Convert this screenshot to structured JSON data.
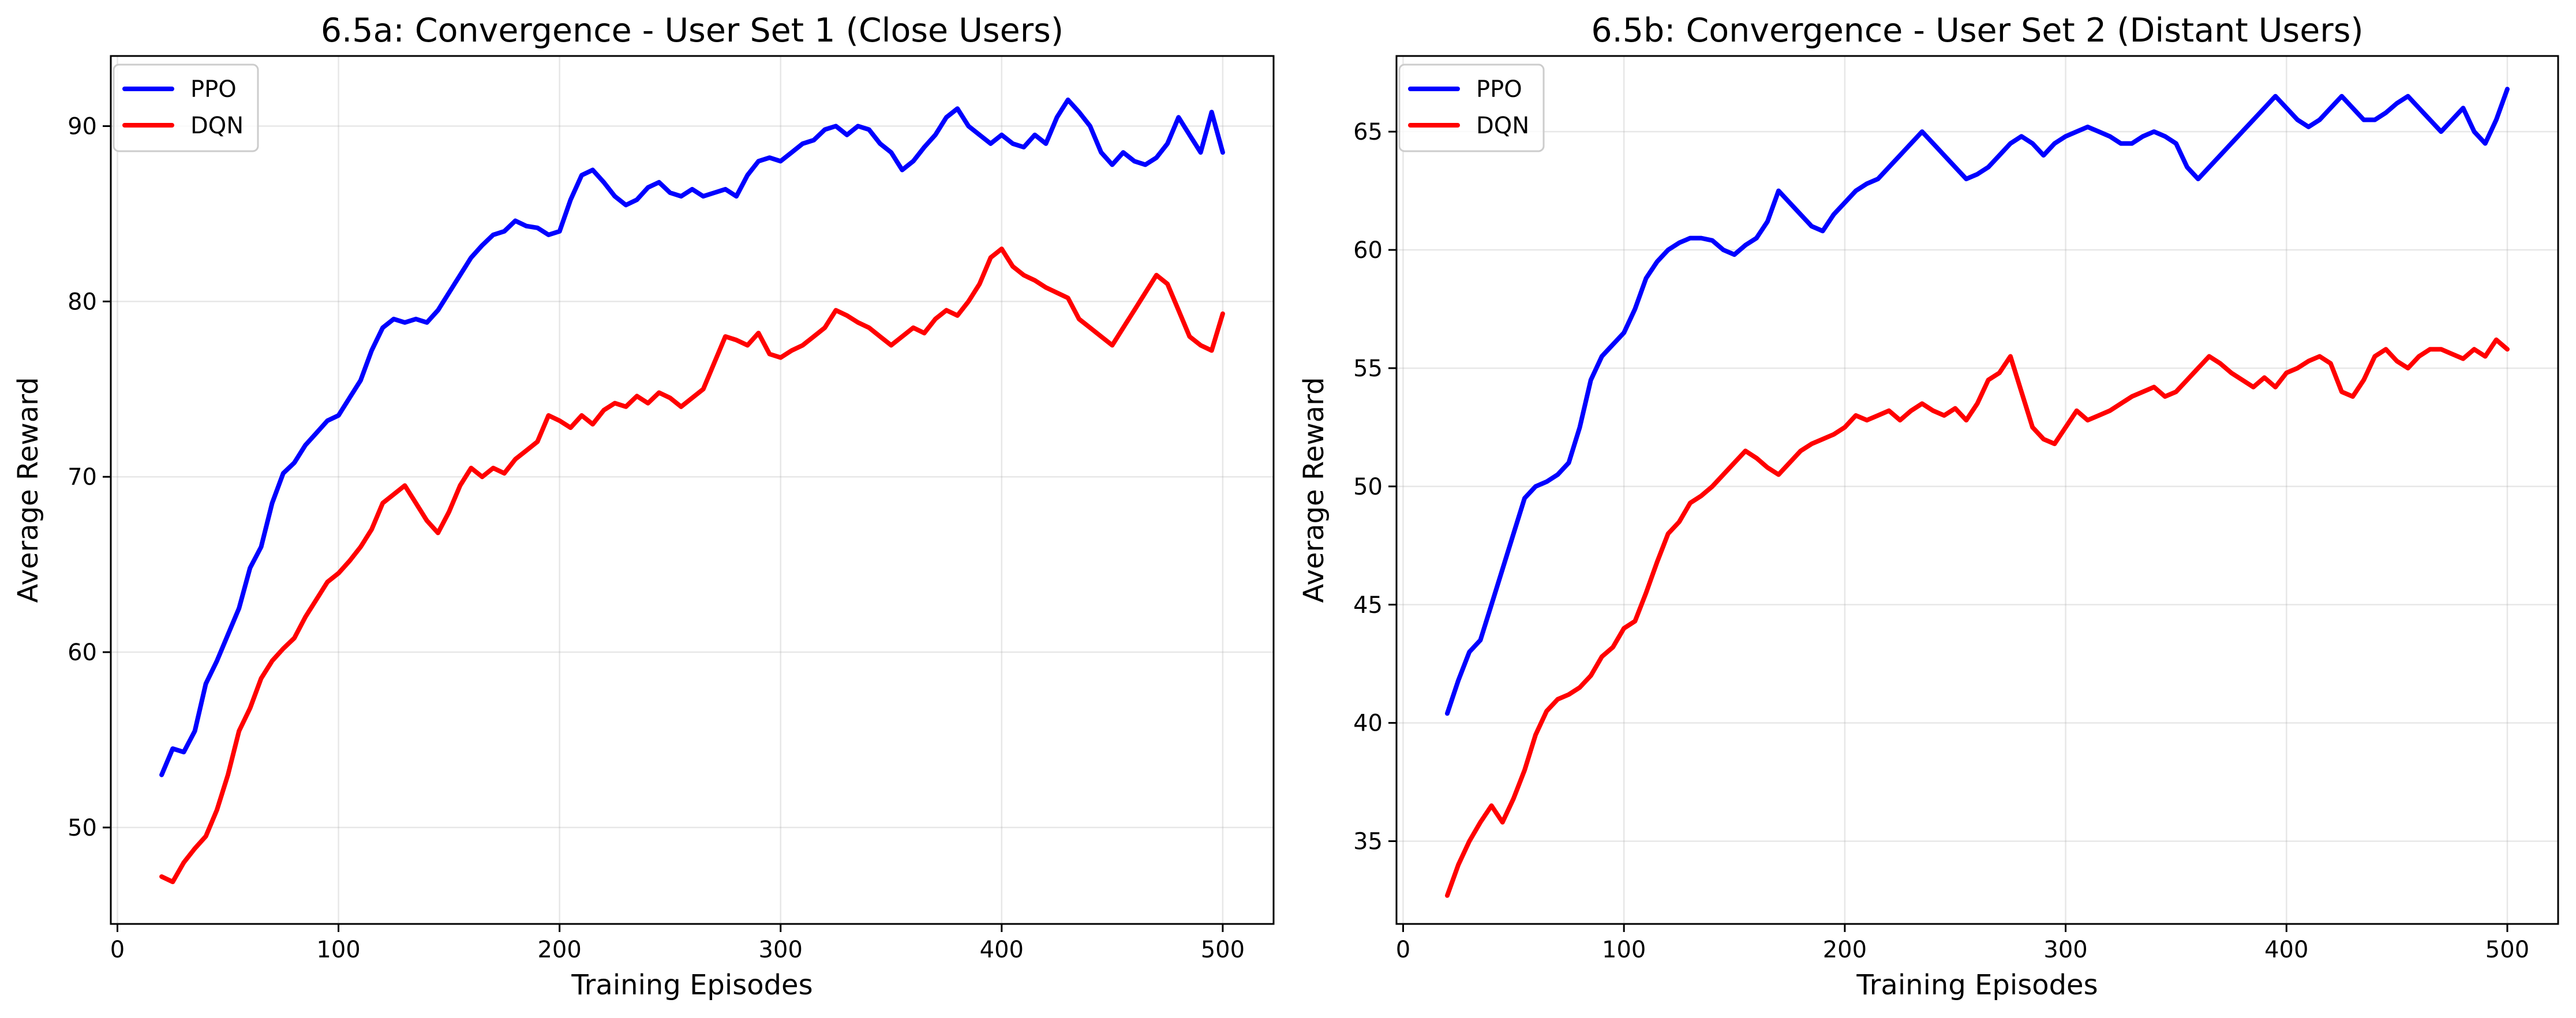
{
  "chart_data": [
    {
      "type": "line",
      "title": "6.5a: Convergence - User Set 1 (Close Users)",
      "xlabel": "Training Episodes",
      "ylabel": "Average Reward",
      "xlim": [
        -3,
        523
      ],
      "ylim": [
        44.5,
        94
      ],
      "xticks": [
        0,
        100,
        200,
        300,
        400,
        500
      ],
      "yticks": [
        50,
        60,
        70,
        80,
        90
      ],
      "grid": true,
      "legend_placement": "top-left",
      "series": [
        {
          "name": "PPO",
          "color": "#0000ff",
          "x": [
            20,
            25,
            30,
            35,
            40,
            45,
            50,
            55,
            60,
            65,
            70,
            75,
            80,
            85,
            90,
            95,
            100,
            105,
            110,
            115,
            120,
            125,
            130,
            135,
            140,
            145,
            150,
            155,
            160,
            165,
            170,
            175,
            180,
            185,
            190,
            195,
            200,
            205,
            210,
            215,
            220,
            225,
            230,
            235,
            240,
            245,
            250,
            255,
            260,
            265,
            270,
            275,
            280,
            285,
            290,
            295,
            300,
            305,
            310,
            315,
            320,
            325,
            330,
            335,
            340,
            345,
            350,
            355,
            360,
            365,
            370,
            375,
            380,
            385,
            390,
            395,
            400,
            405,
            410,
            415,
            420,
            425,
            430,
            435,
            440,
            445,
            450,
            455,
            460,
            465,
            470,
            475,
            480,
            485,
            490,
            495,
            500
          ],
          "y": [
            53.0,
            54.5,
            54.3,
            55.5,
            58.2,
            59.5,
            61.0,
            62.5,
            64.8,
            66.0,
            68.5,
            70.2,
            70.8,
            71.8,
            72.5,
            73.2,
            73.5,
            74.5,
            75.5,
            77.2,
            78.5,
            79.0,
            78.8,
            79.0,
            78.8,
            79.5,
            80.5,
            81.5,
            82.5,
            83.2,
            83.8,
            84.0,
            84.6,
            84.3,
            84.2,
            83.8,
            84.0,
            85.8,
            87.2,
            87.5,
            86.8,
            86.0,
            85.5,
            85.8,
            86.5,
            86.8,
            86.2,
            86.0,
            86.4,
            86.0,
            86.2,
            86.4,
            86.0,
            87.2,
            88.0,
            88.2,
            88.0,
            88.5,
            89.0,
            89.2,
            89.8,
            90.0,
            89.5,
            90.0,
            89.8,
            89.0,
            88.5,
            87.5,
            88.0,
            88.8,
            89.5,
            90.5,
            91.0,
            90.0,
            89.5,
            89.0,
            89.5,
            89.0,
            88.8,
            89.5,
            89.0,
            90.5,
            91.5,
            90.8,
            90.0,
            88.5,
            87.8,
            88.5,
            88.0,
            87.8,
            88.2,
            89.0,
            90.5,
            89.5,
            88.5,
            90.8,
            88.5
          ]
        },
        {
          "name": "DQN",
          "color": "#ff0000",
          "x": [
            20,
            25,
            30,
            35,
            40,
            45,
            50,
            55,
            60,
            65,
            70,
            75,
            80,
            85,
            90,
            95,
            100,
            105,
            110,
            115,
            120,
            125,
            130,
            135,
            140,
            145,
            150,
            155,
            160,
            165,
            170,
            175,
            180,
            185,
            190,
            195,
            200,
            205,
            210,
            215,
            220,
            225,
            230,
            235,
            240,
            245,
            250,
            255,
            260,
            265,
            270,
            275,
            280,
            285,
            290,
            295,
            300,
            305,
            310,
            315,
            320,
            325,
            330,
            335,
            340,
            345,
            350,
            355,
            360,
            365,
            370,
            375,
            380,
            385,
            390,
            395,
            400,
            405,
            410,
            415,
            420,
            425,
            430,
            435,
            440,
            445,
            450,
            455,
            460,
            465,
            470,
            475,
            480,
            485,
            490,
            495,
            500
          ],
          "y": [
            47.2,
            46.9,
            48.0,
            48.8,
            49.5,
            51.0,
            53.0,
            55.5,
            56.8,
            58.5,
            59.5,
            60.2,
            60.8,
            62.0,
            63.0,
            64.0,
            64.5,
            65.2,
            66.0,
            67.0,
            68.5,
            69.0,
            69.5,
            68.5,
            67.5,
            66.8,
            68.0,
            69.5,
            70.5,
            70.0,
            70.5,
            70.2,
            71.0,
            71.5,
            72.0,
            73.5,
            73.2,
            72.8,
            73.5,
            73.0,
            73.8,
            74.2,
            74.0,
            74.6,
            74.2,
            74.8,
            74.5,
            74.0,
            74.5,
            75.0,
            76.5,
            78.0,
            77.8,
            77.5,
            78.2,
            77.0,
            76.8,
            77.2,
            77.5,
            78.0,
            78.5,
            79.5,
            79.2,
            78.8,
            78.5,
            78.0,
            77.5,
            78.0,
            78.5,
            78.2,
            79.0,
            79.5,
            79.2,
            80.0,
            81.0,
            82.5,
            83.0,
            82.0,
            81.5,
            81.2,
            80.8,
            80.5,
            80.2,
            79.0,
            78.5,
            78.0,
            77.5,
            78.5,
            79.5,
            80.5,
            81.5,
            81.0,
            79.5,
            78.0,
            77.5,
            77.2,
            79.3
          ]
        }
      ]
    },
    {
      "type": "line",
      "title": "6.5b: Convergence - User Set 2 (Distant Users)",
      "xlabel": "Training Episodes",
      "ylabel": "Average Reward",
      "xlim": [
        -3,
        523
      ],
      "ylim": [
        31.5,
        68.2
      ],
      "xticks": [
        0,
        100,
        200,
        300,
        400,
        500
      ],
      "yticks": [
        35,
        40,
        45,
        50,
        55,
        60,
        65
      ],
      "grid": true,
      "legend_placement": "top-left",
      "series": [
        {
          "name": "PPO",
          "color": "#0000ff",
          "x": [
            20,
            25,
            30,
            35,
            40,
            45,
            50,
            55,
            60,
            65,
            70,
            75,
            80,
            85,
            90,
            95,
            100,
            105,
            110,
            115,
            120,
            125,
            130,
            135,
            140,
            145,
            150,
            155,
            160,
            165,
            170,
            175,
            180,
            185,
            190,
            195,
            200,
            205,
            210,
            215,
            220,
            225,
            230,
            235,
            240,
            245,
            250,
            255,
            260,
            265,
            270,
            275,
            280,
            285,
            290,
            295,
            300,
            305,
            310,
            315,
            320,
            325,
            330,
            335,
            340,
            345,
            350,
            355,
            360,
            365,
            370,
            375,
            380,
            385,
            390,
            395,
            400,
            405,
            410,
            415,
            420,
            425,
            430,
            435,
            440,
            445,
            450,
            455,
            460,
            465,
            470,
            475,
            480,
            485,
            490,
            495,
            500
          ],
          "y": [
            40.4,
            41.8,
            43.0,
            43.5,
            45.0,
            46.5,
            48.0,
            49.5,
            50.0,
            50.2,
            50.5,
            51.0,
            52.5,
            54.5,
            55.5,
            56.0,
            56.5,
            57.5,
            58.8,
            59.5,
            60.0,
            60.3,
            60.5,
            60.5,
            60.4,
            60.0,
            59.8,
            60.2,
            60.5,
            61.2,
            62.5,
            62.0,
            61.5,
            61.0,
            60.8,
            61.5,
            62.0,
            62.5,
            62.8,
            63.0,
            63.5,
            64.0,
            64.5,
            65.0,
            64.5,
            64.0,
            63.5,
            63.0,
            63.2,
            63.5,
            64.0,
            64.5,
            64.8,
            64.5,
            64.0,
            64.5,
            64.8,
            65.0,
            65.2,
            65.0,
            64.8,
            64.5,
            64.5,
            64.8,
            65.0,
            64.8,
            64.5,
            63.5,
            63.0,
            63.5,
            64.0,
            64.5,
            65.0,
            65.5,
            66.0,
            66.5,
            66.0,
            65.5,
            65.2,
            65.5,
            66.0,
            66.5,
            66.0,
            65.5,
            65.5,
            65.8,
            66.2,
            66.5,
            66.0,
            65.5,
            65.0,
            65.5,
            66.0,
            65.0,
            64.5,
            65.5,
            66.8
          ]
        },
        {
          "name": "DQN",
          "color": "#ff0000",
          "x": [
            20,
            25,
            30,
            35,
            40,
            45,
            50,
            55,
            60,
            65,
            70,
            75,
            80,
            85,
            90,
            95,
            100,
            105,
            110,
            115,
            120,
            125,
            130,
            135,
            140,
            145,
            150,
            155,
            160,
            165,
            170,
            175,
            180,
            185,
            190,
            195,
            200,
            205,
            210,
            215,
            220,
            225,
            230,
            235,
            240,
            245,
            250,
            255,
            260,
            265,
            270,
            275,
            280,
            285,
            290,
            295,
            300,
            305,
            310,
            315,
            320,
            325,
            330,
            335,
            340,
            345,
            350,
            355,
            360,
            365,
            370,
            375,
            380,
            385,
            390,
            395,
            400,
            405,
            410,
            415,
            420,
            425,
            430,
            435,
            440,
            445,
            450,
            455,
            460,
            465,
            470,
            475,
            480,
            485,
            490,
            495,
            500
          ],
          "y": [
            32.7,
            34.0,
            35.0,
            35.8,
            36.5,
            35.8,
            36.8,
            38.0,
            39.5,
            40.5,
            41.0,
            41.2,
            41.5,
            42.0,
            42.8,
            43.2,
            44.0,
            44.3,
            45.5,
            46.8,
            48.0,
            48.5,
            49.3,
            49.6,
            50.0,
            50.5,
            51.0,
            51.5,
            51.2,
            50.8,
            50.5,
            51.0,
            51.5,
            51.8,
            52.0,
            52.2,
            52.5,
            53.0,
            52.8,
            53.0,
            53.2,
            52.8,
            53.2,
            53.5,
            53.2,
            53.0,
            53.3,
            52.8,
            53.5,
            54.5,
            54.8,
            55.5,
            54.0,
            52.5,
            52.0,
            51.8,
            52.5,
            53.2,
            52.8,
            53.0,
            53.2,
            53.5,
            53.8,
            54.0,
            54.2,
            53.8,
            54.0,
            54.5,
            55.0,
            55.5,
            55.2,
            54.8,
            54.5,
            54.2,
            54.6,
            54.2,
            54.8,
            55.0,
            55.3,
            55.5,
            55.2,
            54.0,
            53.8,
            54.5,
            55.5,
            55.8,
            55.3,
            55.0,
            55.5,
            55.8,
            55.8,
            55.6,
            55.4,
            55.8,
            55.5,
            56.2,
            55.8
          ]
        }
      ]
    }
  ]
}
